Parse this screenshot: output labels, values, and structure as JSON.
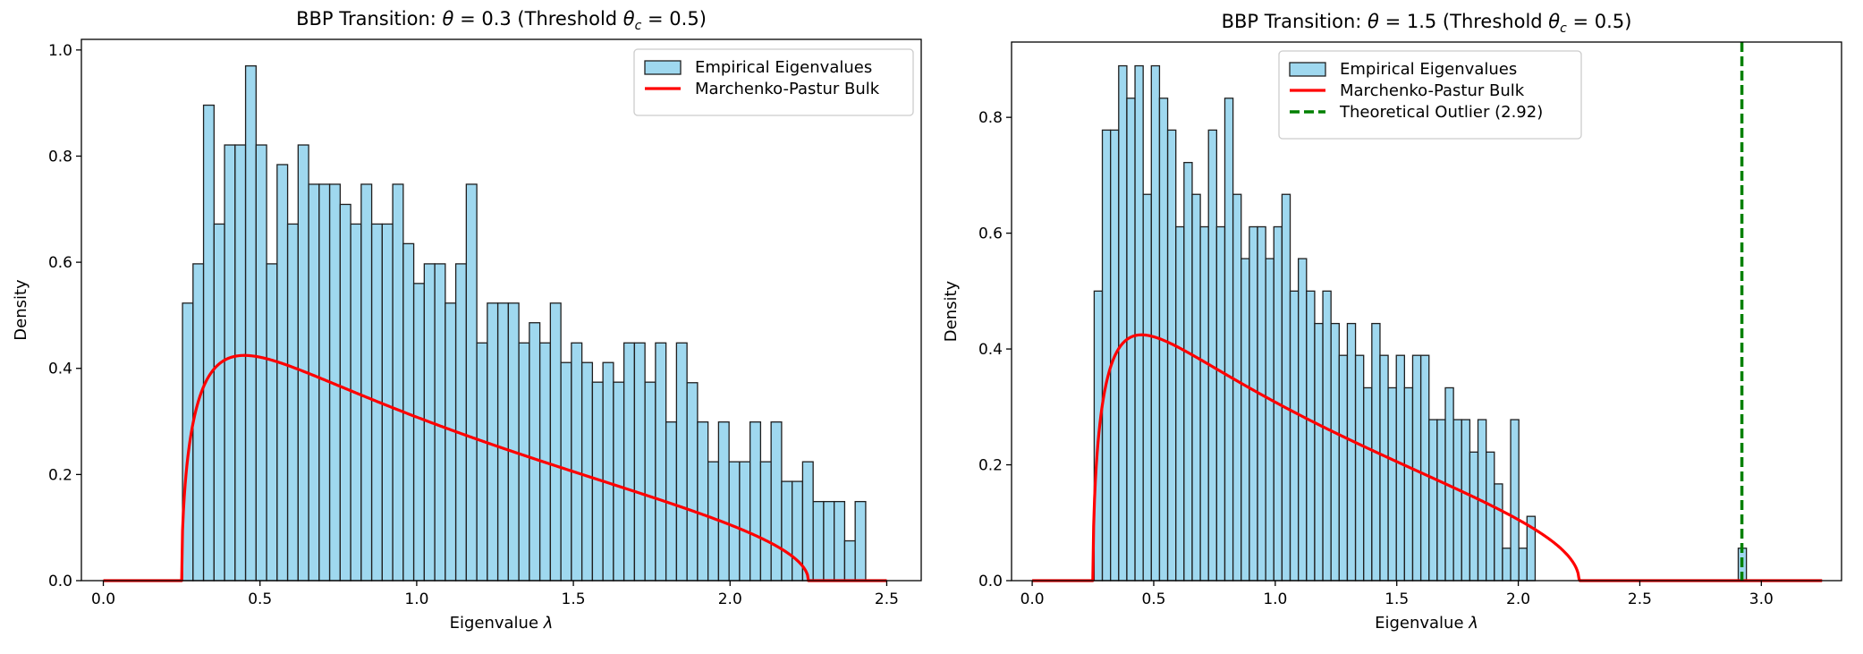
{
  "chart_data": [
    {
      "type": "bar",
      "title": "BBP Transition: θ = 0.3 (Threshold θc = 0.5)",
      "title_parts": {
        "prefix": "BBP Transition: ",
        "theta": "θ",
        "eq1": " = 0.3 (Threshold ",
        "theta_c": "θ",
        "c": "c",
        "eq2": " = 0.5)"
      },
      "xlabel": "Eigenvalue",
      "xlabel_symbol": "λ",
      "ylabel": "Density",
      "xlim": [
        -0.07,
        2.61
      ],
      "ylim": [
        0,
        1.02
      ],
      "xticks": [
        0.0,
        0.5,
        1.0,
        1.5,
        2.0,
        2.5
      ],
      "xtick_labels": [
        "0.0",
        "0.5",
        "1.0",
        "1.5",
        "2.0",
        "2.5"
      ],
      "yticks": [
        0.0,
        0.2,
        0.4,
        0.6,
        0.8,
        1.0
      ],
      "ytick_labels": [
        "0.0",
        "0.2",
        "0.4",
        "0.6",
        "0.8",
        "1.0"
      ],
      "grid": false,
      "legend_position": "upper right",
      "legend": [
        {
          "label": "Empirical Eigenvalues",
          "kind": "patch"
        },
        {
          "label": "Marchenko-Pastur Bulk",
          "kind": "line"
        }
      ],
      "histogram": {
        "name": "Empirical Eigenvalues",
        "bin_start": 0.2527,
        "bin_width": 0.03354,
        "values": [
          0.523,
          0.597,
          0.896,
          0.672,
          0.821,
          0.821,
          0.97,
          0.821,
          0.597,
          0.784,
          0.672,
          0.821,
          0.747,
          0.747,
          0.747,
          0.709,
          0.672,
          0.747,
          0.672,
          0.672,
          0.747,
          0.635,
          0.56,
          0.597,
          0.597,
          0.523,
          0.597,
          0.747,
          0.448,
          0.523,
          0.523,
          0.523,
          0.448,
          0.486,
          0.448,
          0.523,
          0.411,
          0.448,
          0.411,
          0.374,
          0.411,
          0.374,
          0.448,
          0.448,
          0.374,
          0.448,
          0.299,
          0.448,
          0.373,
          0.299,
          0.224,
          0.299,
          0.224,
          0.224,
          0.299,
          0.224,
          0.299,
          0.187,
          0.187,
          0.224,
          0.149,
          0.149,
          0.149,
          0.075,
          0.149
        ]
      },
      "mp_curve": {
        "name": "Marchenko-Pastur Bulk",
        "lambda_minus": 0.25,
        "lambda_plus": 2.25,
        "x_range": [
          0.0,
          2.5
        ],
        "ratio": 0.5
      },
      "colors": {
        "bar_fill": "#87ceeb",
        "bar_edge": "#1f1f1f",
        "curve": "#ff0000"
      }
    },
    {
      "type": "bar",
      "title": "BBP Transition: θ = 1.5 (Threshold θc = 0.5)",
      "title_parts": {
        "prefix": "BBP Transition: ",
        "theta": "θ",
        "eq1": " = 1.5 (Threshold ",
        "theta_c": "θ",
        "c": "c",
        "eq2": " = 0.5)"
      },
      "xlabel": "Eigenvalue",
      "xlabel_symbol": "λ",
      "ylabel": "Density",
      "xlim": [
        -0.085,
        3.33
      ],
      "ylim": [
        0,
        0.93
      ],
      "xticks": [
        0.0,
        0.5,
        1.0,
        1.5,
        2.0,
        2.5,
        3.0
      ],
      "xtick_labels": [
        "0.0",
        "0.5",
        "1.0",
        "1.5",
        "2.0",
        "2.5",
        "3.0"
      ],
      "yticks": [
        0.0,
        0.2,
        0.4,
        0.6,
        0.8
      ],
      "ytick_labels": [
        "0.0",
        "0.2",
        "0.4",
        "0.6",
        "0.8"
      ],
      "grid": false,
      "legend_position": "upper center",
      "legend": [
        {
          "label": "Empirical Eigenvalues",
          "kind": "patch"
        },
        {
          "label": "Marchenko-Pastur Bulk",
          "kind": "line"
        },
        {
          "label": "Theoretical Outlier (2.92)",
          "kind": "dashed"
        }
      ],
      "histogram": {
        "name": "Empirical Eigenvalues",
        "bin_start": 0.255,
        "bin_width": 0.0336,
        "values": [
          0.5,
          0.778,
          0.778,
          0.889,
          0.833,
          0.889,
          0.667,
          0.889,
          0.833,
          0.778,
          0.611,
          0.722,
          0.667,
          0.611,
          0.778,
          0.611,
          0.833,
          0.667,
          0.556,
          0.611,
          0.611,
          0.556,
          0.611,
          0.667,
          0.5,
          0.556,
          0.5,
          0.444,
          0.5,
          0.444,
          0.389,
          0.444,
          0.389,
          0.333,
          0.444,
          0.389,
          0.333,
          0.389,
          0.333,
          0.389,
          0.389,
          0.278,
          0.278,
          0.333,
          0.278,
          0.278,
          0.222,
          0.278,
          0.222,
          0.167,
          0.056,
          0.278,
          0.056,
          0.111
        ],
        "outlier_bin": {
          "x": 2.905,
          "value": 0.056
        }
      },
      "mp_curve": {
        "name": "Marchenko-Pastur Bulk",
        "lambda_minus": 0.25,
        "lambda_plus": 2.25,
        "x_range": [
          0.0,
          3.25
        ],
        "ratio": 0.5
      },
      "outlier_line": {
        "name": "Theoretical Outlier (2.92)",
        "x": 2.92
      },
      "colors": {
        "bar_fill": "#87ceeb",
        "bar_edge": "#1f1f1f",
        "curve": "#ff0000",
        "outlier": "#008000"
      }
    }
  ]
}
